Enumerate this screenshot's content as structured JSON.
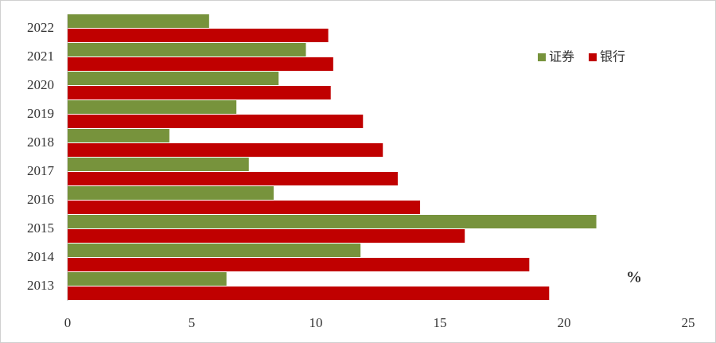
{
  "chart_data": {
    "type": "barh",
    "categories": [
      "2022",
      "2021",
      "2020",
      "2019",
      "2018",
      "2017",
      "2016",
      "2015",
      "2014",
      "2013"
    ],
    "series": [
      {
        "name": "证券",
        "color": "#77933c",
        "values": [
          5.7,
          9.6,
          8.5,
          6.8,
          4.1,
          7.3,
          8.3,
          21.3,
          11.8,
          6.4
        ]
      },
      {
        "name": "银行",
        "color": "#c00000",
        "values": [
          10.5,
          10.7,
          10.6,
          11.9,
          12.7,
          13.3,
          14.2,
          16.0,
          18.6,
          19.4
        ]
      }
    ],
    "xlim": [
      0,
      25
    ],
    "xticks": [
      0,
      5,
      10,
      15,
      20,
      25
    ],
    "annotation": "%",
    "legend": "upper right"
  }
}
